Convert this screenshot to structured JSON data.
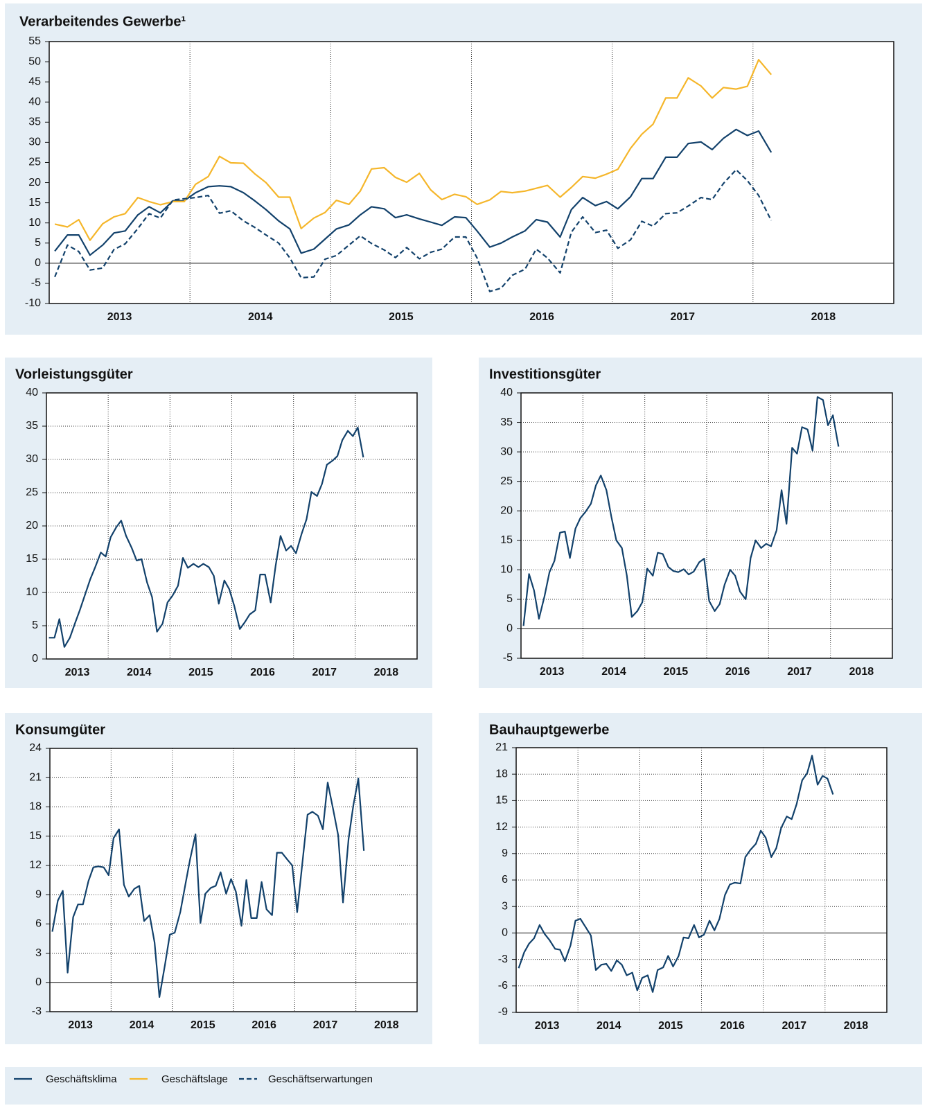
{
  "chart_data": [
    {
      "type": "line",
      "title": "Verarbeitendes Gewerbe¹",
      "x": [
        2013.04,
        2013.13,
        2013.21,
        2013.29,
        2013.38,
        2013.46,
        2013.54,
        2013.63,
        2013.71,
        2013.79,
        2013.88,
        2013.96,
        2014.04,
        2014.13,
        2014.21,
        2014.29,
        2014.38,
        2014.46,
        2014.54,
        2014.63,
        2014.71,
        2014.79,
        2014.88,
        2014.96,
        2015.04,
        2015.13,
        2015.21,
        2015.29,
        2015.38,
        2015.46,
        2015.54,
        2015.63,
        2015.71,
        2015.79,
        2015.88,
        2015.96,
        2016.04,
        2016.13,
        2016.21,
        2016.29,
        2016.38,
        2016.46,
        2016.54,
        2016.63,
        2016.71,
        2016.79,
        2016.88,
        2016.96,
        2017.04,
        2017.13,
        2017.21,
        2017.29,
        2017.38,
        2017.46,
        2017.54,
        2017.63,
        2017.71,
        2017.79,
        2017.88,
        2017.96,
        2018.04,
        2018.13
      ],
      "series": [
        {
          "name": "Geschäftsklima",
          "color": "#12416b",
          "dashed": false,
          "values": [
            3,
            7,
            7,
            2,
            4.5,
            7.5,
            8,
            12,
            14,
            12.5,
            15.5,
            15.5,
            17.5,
            19,
            19.2,
            19,
            17.5,
            15.5,
            13.3,
            10.5,
            8.5,
            2.5,
            3.5,
            6,
            8.5,
            9.5,
            12,
            14,
            13.5,
            11.3,
            12,
            11,
            10.2,
            9.4,
            11.5,
            11.3,
            8,
            4,
            5,
            6.5,
            8,
            10.8,
            10.2,
            6.5,
            13.3,
            16.3,
            14.3,
            15.3,
            13.5,
            16.5,
            21,
            21,
            26.3,
            26.3,
            29.7,
            30.1,
            28.2,
            31,
            33.2,
            31.7,
            32.8,
            27.5
          ]
        },
        {
          "name": "Geschäftslage",
          "color": "#f5b62a",
          "dashed": false,
          "values": [
            9.7,
            9,
            10.8,
            5.7,
            9.8,
            11.5,
            12.3,
            16.3,
            15.3,
            14.5,
            15.3,
            15.3,
            19.6,
            21.5,
            26.5,
            24.9,
            24.8,
            22.2,
            20,
            16.4,
            16.4,
            8.6,
            11.2,
            12.6,
            15.6,
            14.6,
            17.9,
            23.4,
            23.7,
            21.3,
            20.1,
            22.3,
            18.2,
            15.8,
            17.1,
            16.5,
            14.6,
            15.7,
            17.8,
            17.5,
            17.9,
            18.6,
            19.3,
            16.4,
            18.8,
            21.5,
            21.1,
            22.1,
            23.3,
            28.5,
            32,
            34.5,
            41,
            41,
            46,
            44,
            41,
            43.6,
            43.2,
            43.9,
            50.5,
            46.8
          ]
        },
        {
          "name": "Geschäftserwartungen",
          "color": "#12416b",
          "dashed": true,
          "values": [
            -3.4,
            4.5,
            2.9,
            -1.7,
            -1.2,
            3.4,
            4.8,
            8.6,
            12.3,
            11.2,
            15.7,
            16,
            16.3,
            16.8,
            12.4,
            13,
            10.5,
            8.9,
            7,
            5,
            1.3,
            -3.6,
            -3.4,
            1,
            1.9,
            4.5,
            6.8,
            4.9,
            3.3,
            1.4,
            3.9,
            1.1,
            2.7,
            3.5,
            6.5,
            6.5,
            1.3,
            -7,
            -6.2,
            -3,
            -1.5,
            3.5,
            1.3,
            -2.4,
            7.7,
            11.5,
            7.6,
            8.2,
            3.7,
            5.8,
            10.4,
            9.2,
            12.3,
            12.5,
            14.2,
            16.3,
            15.8,
            19.8,
            23.2,
            20.5,
            16.8,
            10.6
          ]
        }
      ],
      "xlim": [
        2013,
        2019
      ],
      "xticks": [
        {
          "value": 2013.5,
          "label": "2013"
        },
        {
          "value": 2014.5,
          "label": "2014"
        },
        {
          "value": 2015.5,
          "label": "2015"
        },
        {
          "value": 2016.5,
          "label": "2016"
        },
        {
          "value": 2017.5,
          "label": "2017"
        },
        {
          "value": 2018.5,
          "label": "2018"
        }
      ],
      "xgrid": [
        2014,
        2015,
        2016,
        2017,
        2018
      ],
      "ylim": [
        -10,
        55
      ],
      "yticks": [
        -10,
        -5,
        0,
        5,
        10,
        15,
        20,
        25,
        30,
        35,
        40,
        45,
        50,
        55
      ],
      "ygrid": false
    },
    {
      "type": "line",
      "title": "Vorleistungsgüter",
      "x": [
        2013.04,
        2013.13,
        2013.21,
        2013.29,
        2013.38,
        2013.46,
        2013.54,
        2013.63,
        2013.71,
        2013.79,
        2013.88,
        2013.96,
        2014.04,
        2014.13,
        2014.21,
        2014.29,
        2014.38,
        2014.46,
        2014.54,
        2014.63,
        2014.71,
        2014.79,
        2014.88,
        2014.96,
        2015.04,
        2015.13,
        2015.21,
        2015.29,
        2015.38,
        2015.46,
        2015.54,
        2015.63,
        2015.71,
        2015.79,
        2015.88,
        2015.96,
        2016.04,
        2016.13,
        2016.21,
        2016.29,
        2016.38,
        2016.46,
        2016.54,
        2016.63,
        2016.71,
        2016.79,
        2016.88,
        2016.96,
        2017.04,
        2017.13,
        2017.21,
        2017.29,
        2017.38,
        2017.46,
        2017.54,
        2017.63,
        2017.71,
        2017.79,
        2017.88,
        2017.96,
        2018.04,
        2018.13
      ],
      "series": [
        {
          "color": "#12416b",
          "dashed": false,
          "values": [
            3.2,
            3.2,
            6,
            1.8,
            3.2,
            5.3,
            7.3,
            9.8,
            12,
            13.8,
            16,
            15.4,
            18.3,
            19.8,
            20.8,
            18.5,
            16.7,
            14.8,
            15,
            11.5,
            9.3,
            4.1,
            5.3,
            8.5,
            9.5,
            11,
            15.2,
            13.7,
            14.3,
            13.8,
            14.3,
            13.8,
            12.5,
            8.3,
            11.8,
            10.5,
            8,
            4.5,
            5.5,
            6.7,
            7.3,
            12.7,
            12.7,
            8.5,
            14,
            18.5,
            16.3,
            17,
            15.9,
            18.8,
            21,
            25.1,
            24.5,
            26.3,
            29.2,
            29.8,
            30.5,
            32.9,
            34.3,
            33.5,
            34.8,
            30.3
          ]
        }
      ],
      "xlim": [
        2013,
        2019
      ],
      "xticks": [
        {
          "value": 2013.5,
          "label": "2013"
        },
        {
          "value": 2014.5,
          "label": "2014"
        },
        {
          "value": 2015.5,
          "label": "2015"
        },
        {
          "value": 2016.5,
          "label": "2016"
        },
        {
          "value": 2017.5,
          "label": "2017"
        },
        {
          "value": 2018.5,
          "label": "2018"
        }
      ],
      "xgrid": [
        2014,
        2015,
        2016,
        2017,
        2018
      ],
      "ylim": [
        0,
        40
      ],
      "yticks": [
        0,
        5,
        10,
        15,
        20,
        25,
        30,
        35,
        40
      ],
      "ygrid": true
    },
    {
      "type": "line",
      "title": "Investitionsgüter",
      "x": [
        2013.04,
        2013.13,
        2013.21,
        2013.29,
        2013.38,
        2013.46,
        2013.54,
        2013.63,
        2013.71,
        2013.79,
        2013.88,
        2013.96,
        2014.04,
        2014.13,
        2014.21,
        2014.29,
        2014.38,
        2014.46,
        2014.54,
        2014.63,
        2014.71,
        2014.79,
        2014.88,
        2014.96,
        2015.04,
        2015.13,
        2015.21,
        2015.29,
        2015.38,
        2015.46,
        2015.54,
        2015.63,
        2015.71,
        2015.79,
        2015.88,
        2015.96,
        2016.04,
        2016.13,
        2016.21,
        2016.29,
        2016.38,
        2016.46,
        2016.54,
        2016.63,
        2016.71,
        2016.79,
        2016.88,
        2016.96,
        2017.04,
        2017.13,
        2017.21,
        2017.29,
        2017.38,
        2017.46,
        2017.54,
        2017.63,
        2017.71,
        2017.79,
        2017.88,
        2017.96,
        2018.04,
        2018.13
      ],
      "series": [
        {
          "color": "#12416b",
          "dashed": false,
          "values": [
            0.5,
            9.3,
            6.5,
            1.7,
            5.5,
            9.6,
            11.5,
            16.3,
            16.5,
            12,
            17,
            18.8,
            19.8,
            21.2,
            24.3,
            26,
            23.5,
            19,
            15,
            13.7,
            9,
            2,
            3,
            4.5,
            10.2,
            9,
            12.9,
            12.7,
            10.5,
            9.8,
            9.6,
            10.1,
            9.2,
            9.7,
            11.3,
            11.9,
            4.7,
            3,
            4.2,
            7.5,
            10,
            9,
            6.3,
            5,
            12,
            15,
            13.7,
            14.4,
            14,
            16.7,
            23.5,
            17.8,
            30.7,
            29.7,
            34.2,
            33.8,
            30.2,
            39.3,
            38.8,
            34.5,
            36.2,
            30.9
          ]
        }
      ],
      "xlim": [
        2013,
        2019
      ],
      "xticks": [
        {
          "value": 2013.5,
          "label": "2013"
        },
        {
          "value": 2014.5,
          "label": "2014"
        },
        {
          "value": 2015.5,
          "label": "2015"
        },
        {
          "value": 2016.5,
          "label": "2016"
        },
        {
          "value": 2017.5,
          "label": "2017"
        },
        {
          "value": 2018.5,
          "label": "2018"
        }
      ],
      "xgrid": [
        2014,
        2015,
        2016,
        2017,
        2018
      ],
      "ylim": [
        -5,
        40
      ],
      "yticks": [
        -5,
        0,
        5,
        10,
        15,
        20,
        25,
        30,
        35,
        40
      ],
      "ygrid": true
    },
    {
      "type": "line",
      "title": "Konsumgüter",
      "x": [
        2013.04,
        2013.13,
        2013.21,
        2013.29,
        2013.38,
        2013.46,
        2013.54,
        2013.63,
        2013.71,
        2013.79,
        2013.88,
        2013.96,
        2014.04,
        2014.13,
        2014.21,
        2014.29,
        2014.38,
        2014.46,
        2014.54,
        2014.63,
        2014.71,
        2014.79,
        2014.88,
        2014.96,
        2015.04,
        2015.13,
        2015.21,
        2015.29,
        2015.38,
        2015.46,
        2015.54,
        2015.63,
        2015.71,
        2015.79,
        2015.88,
        2015.96,
        2016.04,
        2016.13,
        2016.21,
        2016.29,
        2016.38,
        2016.46,
        2016.54,
        2016.63,
        2016.71,
        2016.79,
        2016.88,
        2016.96,
        2017.04,
        2017.13,
        2017.21,
        2017.29,
        2017.38,
        2017.46,
        2017.54,
        2017.63,
        2017.71,
        2017.79,
        2017.88,
        2017.96,
        2018.04,
        2018.13
      ],
      "series": [
        {
          "color": "#12416b",
          "dashed": false,
          "values": [
            5.2,
            8.4,
            9.4,
            1,
            6.7,
            8,
            8,
            10.4,
            11.8,
            11.9,
            11.8,
            11,
            14.8,
            15.7,
            10,
            8.8,
            9.6,
            9.9,
            6.3,
            6.9,
            4.1,
            -1.5,
            1.8,
            4.9,
            5.1,
            7.2,
            9.9,
            12.6,
            15.2,
            6.1,
            9.1,
            9.7,
            9.9,
            11.3,
            9.1,
            10.6,
            9.3,
            5.8,
            10.5,
            6.6,
            6.6,
            10.3,
            7.5,
            6.9,
            13.3,
            13.3,
            12.6,
            12,
            7.2,
            12.5,
            17.2,
            17.5,
            17.1,
            15.7,
            20.5,
            17.7,
            15.1,
            8.2,
            14.7,
            18.2,
            20.9,
            13.5
          ]
        }
      ],
      "xlim": [
        2013,
        2019
      ],
      "xticks": [
        {
          "value": 2013.5,
          "label": "2013"
        },
        {
          "value": 2014.5,
          "label": "2014"
        },
        {
          "value": 2015.5,
          "label": "2015"
        },
        {
          "value": 2016.5,
          "label": "2016"
        },
        {
          "value": 2017.5,
          "label": "2017"
        },
        {
          "value": 2018.5,
          "label": "2018"
        }
      ],
      "xgrid": [
        2014,
        2015,
        2016,
        2017,
        2018
      ],
      "ylim": [
        -3,
        24
      ],
      "yticks": [
        -3,
        0,
        3,
        6,
        9,
        12,
        15,
        18,
        21,
        24
      ],
      "ygrid": true
    },
    {
      "type": "line",
      "title": "Bauhauptgewerbe",
      "x": [
        2013.04,
        2013.13,
        2013.21,
        2013.29,
        2013.38,
        2013.46,
        2013.54,
        2013.63,
        2013.71,
        2013.79,
        2013.88,
        2013.96,
        2014.04,
        2014.13,
        2014.21,
        2014.29,
        2014.38,
        2014.46,
        2014.54,
        2014.63,
        2014.71,
        2014.79,
        2014.88,
        2014.96,
        2015.04,
        2015.13,
        2015.21,
        2015.29,
        2015.38,
        2015.46,
        2015.54,
        2015.63,
        2015.71,
        2015.79,
        2015.88,
        2015.96,
        2016.04,
        2016.13,
        2016.21,
        2016.29,
        2016.38,
        2016.46,
        2016.54,
        2016.63,
        2016.71,
        2016.79,
        2016.88,
        2016.96,
        2017.04,
        2017.13,
        2017.21,
        2017.29,
        2017.38,
        2017.46,
        2017.54,
        2017.63,
        2017.71,
        2017.79,
        2017.88,
        2017.96,
        2018.04,
        2018.13
      ],
      "series": [
        {
          "color": "#12416b",
          "dashed": false,
          "values": [
            -4,
            -2.2,
            -1.2,
            -0.6,
            0.9,
            -0.1,
            -0.8,
            -1.8,
            -1.9,
            -3.2,
            -1.4,
            1.4,
            1.6,
            0.6,
            -0.3,
            -4.2,
            -3.6,
            -3.5,
            -4.3,
            -3.1,
            -3.6,
            -4.8,
            -4.5,
            -6.5,
            -5.1,
            -4.8,
            -6.7,
            -4.2,
            -3.9,
            -2.6,
            -3.8,
            -2.6,
            -0.5,
            -0.6,
            0.9,
            -0.5,
            -0.2,
            1.4,
            0.3,
            1.6,
            4.3,
            5.5,
            5.7,
            5.6,
            8.6,
            9.4,
            10.1,
            11.6,
            10.8,
            8.6,
            9.6,
            11.9,
            13.2,
            12.9,
            14.6,
            17.3,
            18.1,
            20.1,
            16.8,
            17.8,
            17.5,
            15.7
          ]
        }
      ],
      "xlim": [
        2013,
        2019
      ],
      "xticks": [
        {
          "value": 2013.5,
          "label": "2013"
        },
        {
          "value": 2014.5,
          "label": "2014"
        },
        {
          "value": 2015.5,
          "label": "2015"
        },
        {
          "value": 2016.5,
          "label": "2016"
        },
        {
          "value": 2017.5,
          "label": "2017"
        },
        {
          "value": 2018.5,
          "label": "2018"
        }
      ],
      "xgrid": [
        2014,
        2015,
        2016,
        2017,
        2018
      ],
      "ylim": [
        -9,
        21
      ],
      "yticks": [
        -9,
        -6,
        -3,
        0,
        3,
        6,
        9,
        12,
        15,
        18,
        21
      ],
      "ygrid": true
    }
  ]
}
